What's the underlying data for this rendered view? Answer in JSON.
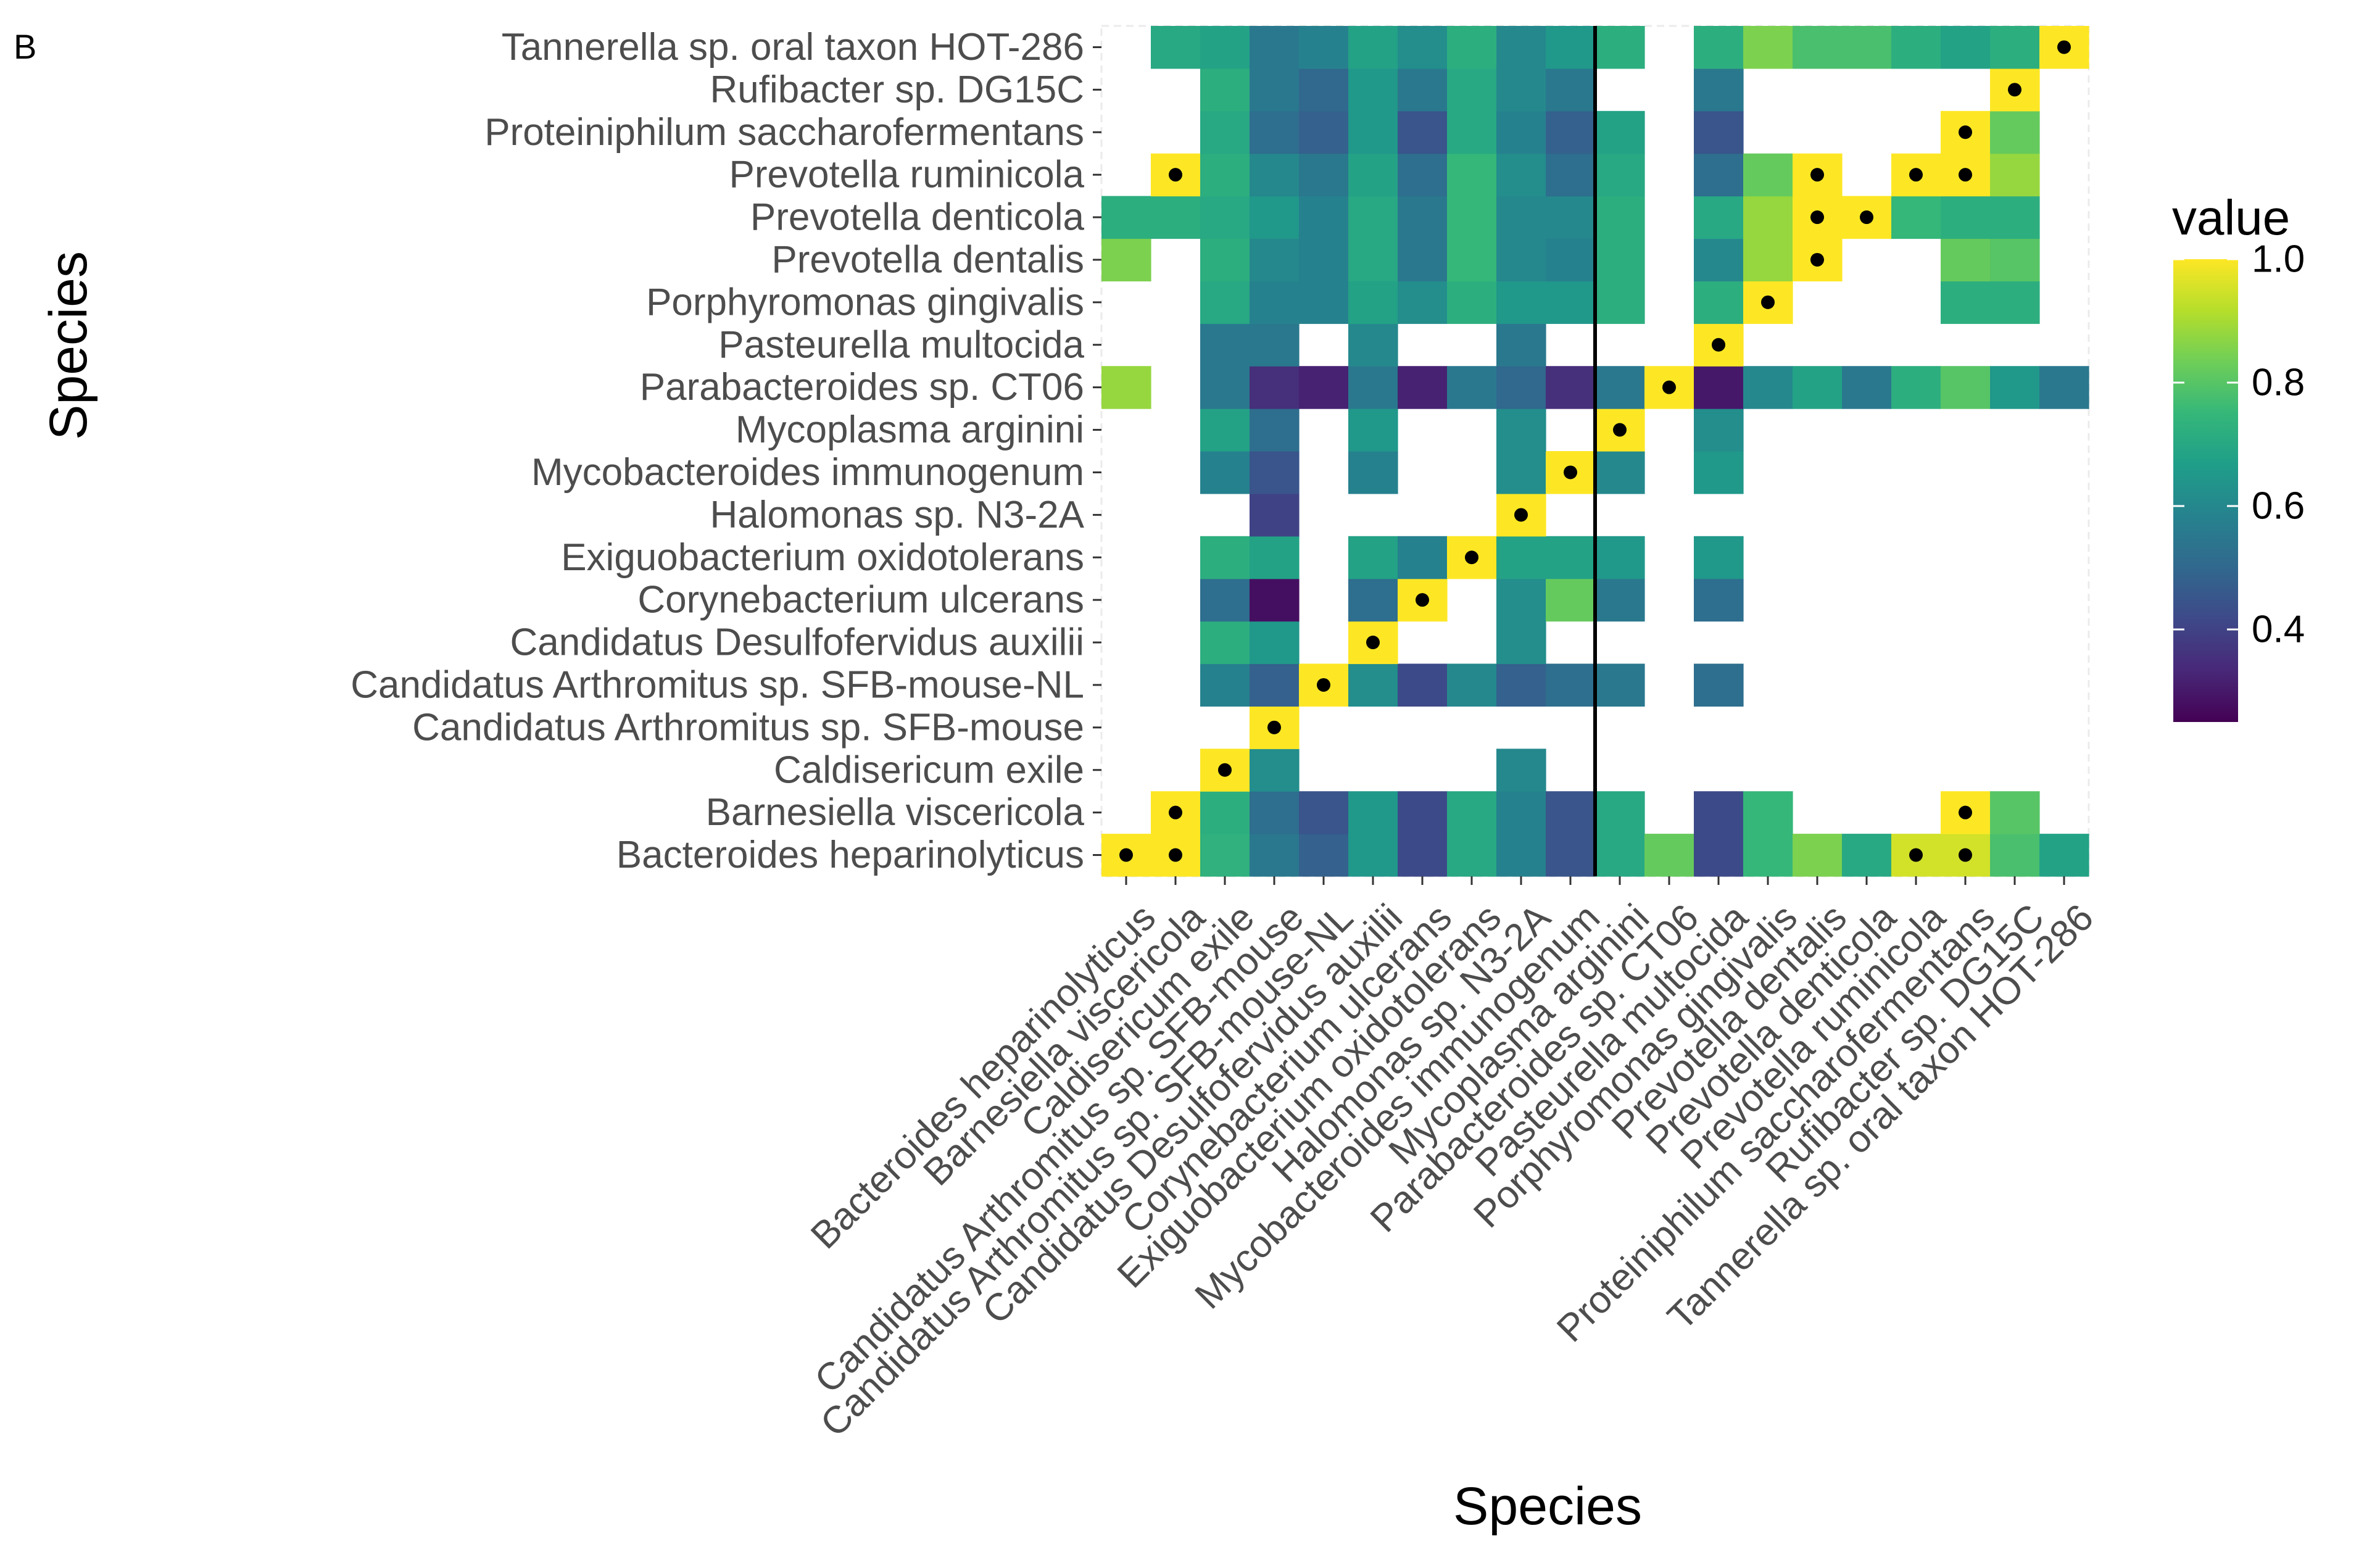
{
  "panel_label": "B",
  "chart_data": {
    "type": "heatmap",
    "xlabel": "Species",
    "ylabel": "Species",
    "species": [
      "Bacteroides heparinolyticus",
      "Barnesiella viscericola",
      "Caldisericum exile",
      "Candidatus Arthromitus sp. SFB-mouse",
      "Candidatus Arthromitus sp. SFB-mouse-NL",
      "Candidatus Desulfofervidus auxilii",
      "Corynebacterium ulcerans",
      "Exiguobacterium oxidotolerans",
      "Halomonas sp. N3-2A",
      "Mycobacteroides immunogenum",
      "Mycoplasma arginini",
      "Parabacteroides sp. CT06",
      "Pasteurella multocida",
      "Porphyromonas gingivalis",
      "Prevotella dentalis",
      "Prevotella denticola",
      "Prevotella ruminicola",
      "Proteiniphilum saccharofermentans",
      "Rufibacter sp. DG15C",
      "Tannerella sp. oral taxon HOT-286"
    ],
    "value_range": [
      0.25,
      1.0
    ],
    "legend": {
      "title": "value",
      "ticks": [
        "0.4",
        "0.6",
        "0.8",
        "1.0"
      ],
      "tick_values": [
        0.4,
        0.6,
        0.8,
        1.0
      ],
      "colormap": "viridis",
      "position": "right"
    },
    "vertical_line_after_column": 10,
    "matrix_row_order": "bottom-to-top, row i corresponds to species[i]; null = missing",
    "values": [
      [
        1.0,
        1.0,
        0.73,
        0.55,
        0.48,
        0.65,
        0.42,
        0.7,
        0.58,
        0.45,
        0.7,
        0.82,
        0.42,
        0.75,
        0.85,
        0.7,
        0.95,
        0.95,
        0.78,
        0.68
      ],
      [
        null,
        1.0,
        0.72,
        0.52,
        0.45,
        0.65,
        0.42,
        0.7,
        0.58,
        0.45,
        0.7,
        null,
        0.42,
        0.75,
        null,
        null,
        null,
        1.0,
        0.8,
        null
      ],
      [
        null,
        null,
        1.0,
        0.62,
        null,
        null,
        null,
        null,
        0.6,
        null,
        null,
        null,
        null,
        null,
        null,
        null,
        null,
        null,
        null,
        null
      ],
      [
        null,
        null,
        null,
        1.0,
        null,
        null,
        null,
        null,
        null,
        null,
        null,
        null,
        null,
        null,
        null,
        null,
        null,
        null,
        null,
        null
      ],
      [
        null,
        null,
        0.58,
        0.48,
        1.0,
        0.62,
        0.42,
        0.6,
        0.48,
        0.52,
        0.55,
        null,
        0.52,
        null,
        null,
        null,
        null,
        null,
        null,
        null
      ],
      [
        null,
        null,
        0.72,
        0.65,
        null,
        1.0,
        null,
        null,
        0.62,
        null,
        null,
        null,
        null,
        null,
        null,
        null,
        null,
        null,
        null,
        null
      ],
      [
        null,
        null,
        0.52,
        0.28,
        null,
        0.52,
        1.0,
        null,
        0.62,
        0.82,
        0.55,
        null,
        0.52,
        null,
        null,
        null,
        null,
        null,
        null,
        null
      ],
      [
        null,
        null,
        0.72,
        0.68,
        null,
        0.68,
        0.58,
        1.0,
        0.68,
        0.68,
        0.65,
        null,
        0.65,
        null,
        null,
        null,
        null,
        null,
        null,
        null
      ],
      [
        null,
        null,
        null,
        0.4,
        null,
        null,
        null,
        null,
        1.0,
        null,
        null,
        null,
        null,
        null,
        null,
        null,
        null,
        null,
        null,
        null
      ],
      [
        null,
        null,
        0.58,
        0.45,
        null,
        0.58,
        null,
        null,
        0.62,
        1.0,
        0.6,
        null,
        0.65,
        null,
        null,
        null,
        null,
        null,
        null,
        null
      ],
      [
        null,
        null,
        0.68,
        0.52,
        null,
        0.65,
        null,
        null,
        0.62,
        null,
        1.0,
        null,
        0.62,
        null,
        null,
        null,
        null,
        null,
        null,
        null
      ],
      [
        0.88,
        null,
        0.55,
        0.35,
        0.32,
        0.55,
        0.32,
        0.55,
        0.5,
        0.35,
        0.55,
        1.0,
        0.3,
        0.6,
        0.68,
        0.55,
        0.72,
        0.8,
        0.65,
        0.55
      ],
      [
        null,
        null,
        0.55,
        0.55,
        null,
        0.6,
        null,
        null,
        0.55,
        null,
        null,
        null,
        1.0,
        null,
        null,
        null,
        null,
        null,
        null,
        null
      ],
      [
        null,
        null,
        0.7,
        0.58,
        0.58,
        0.68,
        0.62,
        0.72,
        0.65,
        0.65,
        0.72,
        null,
        0.72,
        1.0,
        null,
        null,
        null,
        0.72,
        0.72,
        null
      ],
      [
        0.85,
        null,
        0.72,
        0.6,
        0.58,
        0.7,
        0.55,
        0.75,
        0.6,
        0.58,
        0.72,
        null,
        0.6,
        0.88,
        1.0,
        null,
        null,
        0.82,
        0.8,
        null
      ],
      [
        0.72,
        0.72,
        0.7,
        0.65,
        0.58,
        0.7,
        0.55,
        0.75,
        0.6,
        0.6,
        0.72,
        null,
        0.7,
        0.88,
        1.0,
        1.0,
        0.75,
        0.72,
        0.72,
        null
      ],
      [
        null,
        1.0,
        0.72,
        0.6,
        0.55,
        0.68,
        0.52,
        0.75,
        0.62,
        0.52,
        0.7,
        null,
        0.52,
        0.82,
        1.0,
        null,
        1.0,
        1.0,
        0.88,
        null
      ],
      [
        null,
        null,
        0.7,
        0.52,
        0.48,
        0.65,
        0.45,
        0.7,
        0.58,
        0.48,
        0.68,
        null,
        0.45,
        null,
        null,
        null,
        null,
        1.0,
        0.82,
        null
      ],
      [
        null,
        null,
        0.72,
        0.55,
        0.5,
        0.65,
        0.55,
        0.7,
        0.6,
        0.55,
        null,
        null,
        0.55,
        null,
        null,
        null,
        null,
        null,
        1.0,
        null
      ],
      [
        null,
        0.7,
        0.68,
        0.55,
        0.58,
        0.68,
        0.62,
        0.72,
        0.6,
        0.65,
        0.72,
        null,
        0.72,
        0.85,
        0.78,
        0.78,
        0.72,
        0.68,
        0.72,
        1.0
      ]
    ],
    "dots": [
      [
        0,
        0
      ],
      [
        0,
        1
      ],
      [
        0,
        16
      ],
      [
        0,
        17
      ],
      [
        1,
        1
      ],
      [
        1,
        17
      ],
      [
        2,
        2
      ],
      [
        3,
        3
      ],
      [
        4,
        4
      ],
      [
        5,
        5
      ],
      [
        6,
        6
      ],
      [
        7,
        7
      ],
      [
        8,
        8
      ],
      [
        9,
        9
      ],
      [
        10,
        10
      ],
      [
        11,
        11
      ],
      [
        12,
        12
      ],
      [
        13,
        13
      ],
      [
        14,
        14
      ],
      [
        15,
        14
      ],
      [
        15,
        15
      ],
      [
        16,
        1
      ],
      [
        16,
        14
      ],
      [
        16,
        16
      ],
      [
        16,
        17
      ],
      [
        17,
        17
      ],
      [
        18,
        18
      ],
      [
        19,
        19
      ]
    ],
    "dots_format": "[row, column] indices into species"
  }
}
